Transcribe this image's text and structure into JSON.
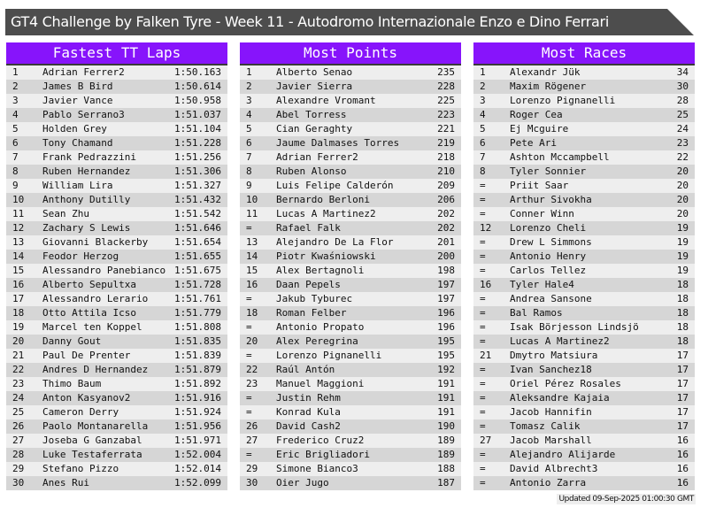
{
  "title": "GT4 Challenge by Falken Tyre - Week 11 - Autodromo Internazionale Enzo e Dino Ferrari",
  "colors": {
    "header": "#8714fb",
    "title_bar": "#4d4d4d",
    "row_light": "#eeeeee",
    "row_dark": "#d6d6d6"
  },
  "panels": [
    {
      "title": "Fastest TT Laps",
      "rows": [
        [
          "1",
          "Adrian Ferrer2",
          "1:50.163"
        ],
        [
          "2",
          "James B Bird",
          "1:50.614"
        ],
        [
          "3",
          "Javier Vance",
          "1:50.958"
        ],
        [
          "4",
          "Pablo Serrano3",
          "1:51.037"
        ],
        [
          "5",
          "Holden Grey",
          "1:51.104"
        ],
        [
          "6",
          "Tony Chamand",
          "1:51.228"
        ],
        [
          "7",
          "Frank Pedrazzini",
          "1:51.256"
        ],
        [
          "8",
          "Ruben Hernandez",
          "1:51.306"
        ],
        [
          "9",
          "William Lira",
          "1:51.327"
        ],
        [
          "10",
          "Anthony Dutilly",
          "1:51.432"
        ],
        [
          "11",
          "Sean Zhu",
          "1:51.542"
        ],
        [
          "12",
          "Zachary S Lewis",
          "1:51.646"
        ],
        [
          "13",
          "Giovanni Blackerby",
          "1:51.654"
        ],
        [
          "14",
          "Feodor Herzog",
          "1:51.655"
        ],
        [
          "15",
          "Alessandro Panebianco",
          "1:51.675"
        ],
        [
          "16",
          "Alberto Sepultxa",
          "1:51.728"
        ],
        [
          "17",
          "Alessandro Lerario",
          "1:51.761"
        ],
        [
          "18",
          "Otto Attila Icso",
          "1:51.779"
        ],
        [
          "19",
          "Marcel ten Koppel",
          "1:51.808"
        ],
        [
          "20",
          "Danny Gout",
          "1:51.835"
        ],
        [
          "21",
          "Paul De Prenter",
          "1:51.839"
        ],
        [
          "22",
          "Andres D Hernandez",
          "1:51.879"
        ],
        [
          "23",
          "Thimo Baum",
          "1:51.892"
        ],
        [
          "24",
          "Anton Kasyanov2",
          "1:51.916"
        ],
        [
          "25",
          "Cameron Derry",
          "1:51.924"
        ],
        [
          "26",
          "Paolo Montanarella",
          "1:51.956"
        ],
        [
          "27",
          "Joseba G Ganzabal",
          "1:51.971"
        ],
        [
          "28",
          "Luke Testaferrata",
          "1:52.004"
        ],
        [
          "29",
          "Stefano Pizzo",
          "1:52.014"
        ],
        [
          "30",
          "Anes Rui",
          "1:52.099"
        ]
      ]
    },
    {
      "title": "Most Points",
      "rows": [
        [
          "1",
          "Alberto Senao",
          "235"
        ],
        [
          "2",
          "Javier Sierra",
          "228"
        ],
        [
          "3",
          "Alexandre Vromant",
          "225"
        ],
        [
          "4",
          "Abel Torress",
          "223"
        ],
        [
          "5",
          "Cian Geraghty",
          "221"
        ],
        [
          "6",
          "Jaume Dalmases Torres",
          "219"
        ],
        [
          "7",
          "Adrian Ferrer2",
          "218"
        ],
        [
          "8",
          "Ruben Alonso",
          "210"
        ],
        [
          "9",
          "Luis Felipe Calderón",
          "209"
        ],
        [
          "10",
          "Bernardo Berloni",
          "206"
        ],
        [
          "11",
          "Lucas A Martinez2",
          "202"
        ],
        [
          "=",
          "Rafael Falk",
          "202"
        ],
        [
          "13",
          "Alejandro De La Flor",
          "201"
        ],
        [
          "14",
          "Piotr Kwaśniowski",
          "200"
        ],
        [
          "15",
          "Alex Bertagnoli",
          "198"
        ],
        [
          "16",
          "Daan Pepels",
          "197"
        ],
        [
          "=",
          "Jakub Tyburec",
          "197"
        ],
        [
          "18",
          "Roman Felber",
          "196"
        ],
        [
          "=",
          "Antonio Propato",
          "196"
        ],
        [
          "20",
          "Alex Peregrina",
          "195"
        ],
        [
          "=",
          "Lorenzo Pignanelli",
          "195"
        ],
        [
          "22",
          "Raúl Antón",
          "192"
        ],
        [
          "23",
          "Manuel Maggioni",
          "191"
        ],
        [
          "=",
          "Justin Rehm",
          "191"
        ],
        [
          "=",
          "Konrad Kula",
          "191"
        ],
        [
          "26",
          "David Cash2",
          "190"
        ],
        [
          "27",
          "Frederico Cruz2",
          "189"
        ],
        [
          "=",
          "Eric Brigliadori",
          "189"
        ],
        [
          "29",
          "Simone Bianco3",
          "188"
        ],
        [
          "30",
          "Oier Jugo",
          "187"
        ]
      ]
    },
    {
      "title": "Most Races",
      "rows": [
        [
          "1",
          "Alexandr Jük",
          "34"
        ],
        [
          "2",
          "Maxim Rögener",
          "30"
        ],
        [
          "3",
          "Lorenzo Pignanelli",
          "28"
        ],
        [
          "4",
          "Roger Cea",
          "25"
        ],
        [
          "5",
          "Ej Mcguire",
          "24"
        ],
        [
          "6",
          "Pete Ari",
          "23"
        ],
        [
          "7",
          "Ashton Mccampbell",
          "22"
        ],
        [
          "8",
          "Tyler Sonnier",
          "20"
        ],
        [
          "=",
          "Priit Saar",
          "20"
        ],
        [
          "=",
          "Arthur Sivokha",
          "20"
        ],
        [
          "=",
          "Conner Winn",
          "20"
        ],
        [
          "12",
          "Lorenzo Cheli",
          "19"
        ],
        [
          "=",
          "Drew L Simmons",
          "19"
        ],
        [
          "=",
          "Antonio Henry",
          "19"
        ],
        [
          "=",
          "Carlos Tellez",
          "19"
        ],
        [
          "16",
          "Tyler Hale4",
          "18"
        ],
        [
          "=",
          "Andrea Sansone",
          "18"
        ],
        [
          "=",
          "Bal Ramos",
          "18"
        ],
        [
          "=",
          "Isak Börjesson Lindsjö",
          "18"
        ],
        [
          "=",
          "Lucas A Martinez2",
          "18"
        ],
        [
          "21",
          "Dmytro Matsiura",
          "17"
        ],
        [
          "=",
          "Ivan Sanchez18",
          "17"
        ],
        [
          "=",
          "Oriel Pérez Rosales",
          "17"
        ],
        [
          "=",
          "Aleksandre Kajaia",
          "17"
        ],
        [
          "=",
          "Jacob Hannifin",
          "17"
        ],
        [
          "=",
          "Tomasz Calik",
          "17"
        ],
        [
          "27",
          "Jacob Marshall",
          "16"
        ],
        [
          "=",
          "Alejandro Alijarde",
          "16"
        ],
        [
          "=",
          "David Albrecht3",
          "16"
        ],
        [
          "=",
          "Antonio Zarra",
          "16"
        ]
      ]
    }
  ],
  "footer": "Updated 09-Sep-2025 01:00:30 GMT"
}
